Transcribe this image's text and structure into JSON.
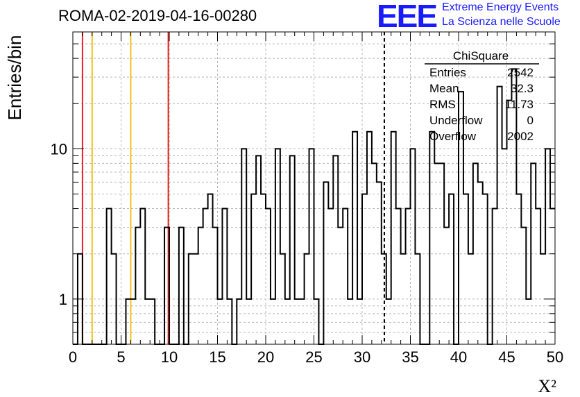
{
  "header": {
    "title": "ROMA-02-2019-04-16-00280",
    "logo_text": "EEE",
    "logo_line1": "Extreme Energy Events",
    "logo_line2": "La Scienza nelle Scuole"
  },
  "colors": {
    "histogram": "#000000",
    "red_line": "#e8201e",
    "yellow_line": "#f2c01a",
    "grid": "#b5b5b5",
    "logo": "#1a1aff"
  },
  "stats_box": {
    "title": "ChiSquare",
    "rows": [
      {
        "label": "Entries",
        "value": "2542"
      },
      {
        "label": "Mean",
        "value": "32.3"
      },
      {
        "label": "RMS",
        "value": "11.73"
      },
      {
        "label": "Underflow",
        "value": "0"
      },
      {
        "label": "Overflow",
        "value": "2002"
      }
    ]
  },
  "chart_data": {
    "type": "bar",
    "style": "step-histogram",
    "title": "ROMA-02-2019-04-16-00280",
    "xlabel": "X²",
    "ylabel": "Entries/bin",
    "xlim": [
      0,
      50
    ],
    "ylim": [
      0.5,
      60
    ],
    "yscale": "log",
    "grid": true,
    "bin_width": 0.5,
    "x_ticks": [
      "0",
      "5",
      "10",
      "15",
      "20",
      "25",
      "30",
      "35",
      "40",
      "45",
      "50"
    ],
    "y_ticks": [
      "1",
      "10"
    ],
    "values": [
      0,
      2,
      0,
      0,
      0,
      0,
      0,
      4,
      2,
      0,
      0,
      1,
      1,
      3,
      4,
      1,
      1,
      0,
      0,
      3,
      0,
      0,
      3,
      0,
      2,
      2,
      3,
      4,
      5,
      3,
      1,
      4,
      1,
      0,
      1,
      10,
      1,
      5,
      9,
      5,
      4,
      1,
      10,
      2,
      1,
      9,
      1,
      1,
      2,
      10,
      1,
      0,
      6,
      4,
      9,
      3,
      4,
      1,
      13,
      1,
      5,
      13,
      8,
      6,
      2,
      1,
      13,
      4,
      2,
      4,
      10,
      2,
      0,
      0,
      13,
      8,
      8,
      3,
      5,
      0,
      24,
      5,
      2,
      8,
      6,
      5,
      0,
      4,
      26,
      10,
      21,
      34,
      5,
      3,
      1,
      8,
      4,
      2,
      10,
      4
    ],
    "vertical_lines": [
      {
        "x": 1.0,
        "color": "red"
      },
      {
        "x": 2.0,
        "color": "yellow"
      },
      {
        "x": 6.0,
        "color": "yellow"
      },
      {
        "x": 9.9,
        "color": "red"
      },
      {
        "x": 32.3,
        "style": "dashed"
      }
    ]
  }
}
